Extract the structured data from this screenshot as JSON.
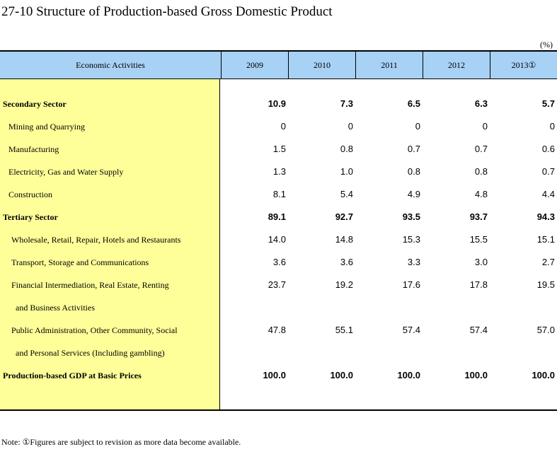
{
  "title": "27-10  Structure of Production-based Gross Domestic Product",
  "unit": "(%)",
  "header": {
    "activities": "Economic Activities",
    "years": [
      "2009",
      "2010",
      "2011",
      "2012",
      "2013①"
    ]
  },
  "rows": [
    {
      "label": "Secondary Sector",
      "values": [
        "10.9",
        "7.3",
        "6.5",
        "6.3",
        "5.7"
      ],
      "bold": true
    },
    {
      "label": "Mining and Quarrying",
      "values": [
        "0",
        "0",
        "0",
        "0",
        "0"
      ]
    },
    {
      "label": "Manufacturing",
      "values": [
        "1.5",
        "0.8",
        "0.7",
        "0.7",
        "0.6"
      ]
    },
    {
      "label": "Electricity, Gas and Water Supply",
      "values": [
        "1.3",
        "1.0",
        "0.8",
        "0.8",
        "0.7"
      ]
    },
    {
      "label": "Construction",
      "values": [
        "8.1",
        "5.4",
        "4.9",
        "4.8",
        "4.4"
      ]
    },
    {
      "label": "Tertiary Sector",
      "values": [
        "89.1",
        "92.7",
        "93.5",
        "93.7",
        "94.3"
      ],
      "bold": true
    },
    {
      "label": "Wholesale, Retail, Repair, Hotels and Restaurants",
      "values": [
        "14.0",
        "14.8",
        "15.3",
        "15.5",
        "15.1"
      ]
    },
    {
      "label": "Transport, Storage and Communications",
      "values": [
        "3.6",
        "3.6",
        "3.3",
        "3.0",
        "2.7"
      ]
    },
    {
      "label": "Financial Intermediation, Real Estate, Renting",
      "values": [
        "23.7",
        "19.2",
        "17.6",
        "17.8",
        "19.5"
      ]
    },
    {
      "label": "and Business Activities",
      "values": [
        "",
        "",
        "",
        "",
        ""
      ]
    },
    {
      "label": "Public Administration, Other Community, Social",
      "values": [
        "47.8",
        "55.1",
        "57.4",
        "57.4",
        "57.0"
      ]
    },
    {
      "label": "and Personal Services (Including gambling)",
      "values": [
        "",
        "",
        "",
        "",
        ""
      ]
    },
    {
      "label": "Production-based GDP at Basic Prices",
      "values": [
        "100.0",
        "100.0",
        "100.0",
        "100.0",
        "100.0"
      ],
      "bold": true
    }
  ],
  "note": "Note: ①Figures are subject to revision as more data become available."
}
